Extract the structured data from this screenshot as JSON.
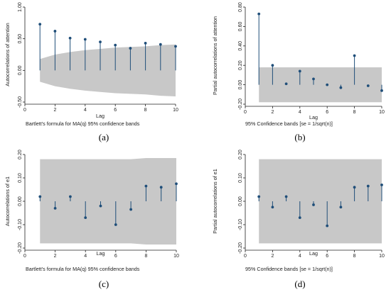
{
  "chart_data": [
    {
      "type": "stem",
      "panel_label": "(a)",
      "ylabel": "Autocorrelations of attention",
      "xlabel": "Lag",
      "note": "Bartlett's formula for MA(q) 95% confidence bands",
      "xlim": [
        0,
        10
      ],
      "xticks": [
        "0",
        "2",
        "4",
        "6",
        "8",
        "10"
      ],
      "ylim": [
        -0.5,
        1.0
      ],
      "yticks": [
        "-0.50",
        "0.00",
        "0.50",
        "1.00"
      ],
      "lags": [
        1,
        2,
        3,
        4,
        5,
        6,
        7,
        8,
        9,
        10
      ],
      "values": [
        0.73,
        0.62,
        0.51,
        0.49,
        0.45,
        0.4,
        0.35,
        0.43,
        0.41,
        0.38
      ],
      "band_upper": [
        0.18,
        0.25,
        0.29,
        0.32,
        0.34,
        0.36,
        0.37,
        0.38,
        0.4,
        0.41
      ],
      "band_lower": [
        -0.18,
        -0.25,
        -0.29,
        -0.32,
        -0.34,
        -0.36,
        -0.37,
        -0.38,
        -0.4,
        -0.41
      ],
      "band_color": "#c8c8c8",
      "marker_color": "#1f4e79"
    },
    {
      "type": "stem",
      "panel_label": "(b)",
      "ylabel": "Partial autocorrelations of attention",
      "xlabel": "Lag",
      "note": "95% Confidence bands [se = 1/sqrt(n)]",
      "xlim": [
        0,
        10
      ],
      "xticks": [
        "0",
        "2",
        "4",
        "6",
        "8",
        "10"
      ],
      "ylim": [
        -0.2,
        0.8
      ],
      "yticks": [
        "-0.20",
        "0.00",
        "0.20",
        "0.40",
        "0.60",
        "0.80"
      ],
      "lags": [
        1,
        2,
        3,
        4,
        5,
        6,
        7,
        8,
        9,
        10
      ],
      "values": [
        0.73,
        0.2,
        0.01,
        0.14,
        0.06,
        0.0,
        -0.03,
        0.3,
        -0.01,
        -0.06
      ],
      "band_upper": [
        0.18,
        0.18,
        0.18,
        0.18,
        0.18,
        0.18,
        0.18,
        0.18,
        0.18,
        0.18
      ],
      "band_lower": [
        -0.18,
        -0.18,
        -0.18,
        -0.18,
        -0.18,
        -0.18,
        -0.18,
        -0.18,
        -0.18,
        -0.18
      ],
      "band_color": "#c8c8c8",
      "marker_color": "#1f4e79"
    },
    {
      "type": "stem",
      "panel_label": "(c)",
      "ylabel": "Autocorrelations of e1",
      "xlabel": "Lag",
      "note": "Bartlett's formula for MA(q) 95% confidence bands",
      "xlim": [
        0,
        10
      ],
      "xticks": [
        "0",
        "2",
        "4",
        "6",
        "8",
        "10"
      ],
      "ylim": [
        -0.2,
        0.2
      ],
      "yticks": [
        "-0.20",
        "-0.10",
        "0.00",
        "0.10",
        "0.20"
      ],
      "lags": [
        1,
        2,
        3,
        4,
        5,
        6,
        7,
        8,
        9,
        10
      ],
      "values": [
        0.02,
        -0.03,
        0.02,
        -0.07,
        -0.02,
        -0.1,
        -0.035,
        0.065,
        0.06,
        0.075
      ],
      "band_upper": [
        0.18,
        0.18,
        0.18,
        0.18,
        0.18,
        0.18,
        0.18,
        0.185,
        0.185,
        0.185
      ],
      "band_lower": [
        -0.18,
        -0.18,
        -0.18,
        -0.18,
        -0.18,
        -0.18,
        -0.18,
        -0.185,
        -0.185,
        -0.185
      ],
      "band_color": "#c8c8c8",
      "marker_color": "#1f4e79"
    },
    {
      "type": "stem",
      "panel_label": "(d)",
      "ylabel": "Partial autocorrelations of e1",
      "xlabel": "Lag",
      "note": "95% Confidence bands [se = 1/sqrt(n)]",
      "xlim": [
        0,
        10
      ],
      "xticks": [
        "0",
        "2",
        "4",
        "6",
        "8",
        "10"
      ],
      "ylim": [
        -0.2,
        0.2
      ],
      "yticks": [
        "-0.20",
        "-0.10",
        "0.00",
        "0.10",
        "0.20"
      ],
      "lags": [
        1,
        2,
        3,
        4,
        5,
        6,
        7,
        8,
        9,
        10
      ],
      "values": [
        0.02,
        -0.025,
        0.02,
        -0.07,
        -0.015,
        -0.105,
        -0.025,
        0.06,
        0.065,
        0.07
      ],
      "band_upper": [
        0.18,
        0.18,
        0.18,
        0.18,
        0.18,
        0.18,
        0.18,
        0.18,
        0.18,
        0.18
      ],
      "band_lower": [
        -0.18,
        -0.18,
        -0.18,
        -0.18,
        -0.18,
        -0.18,
        -0.18,
        -0.18,
        -0.18,
        -0.18
      ],
      "band_color": "#c8c8c8",
      "marker_color": "#1f4e79"
    }
  ]
}
